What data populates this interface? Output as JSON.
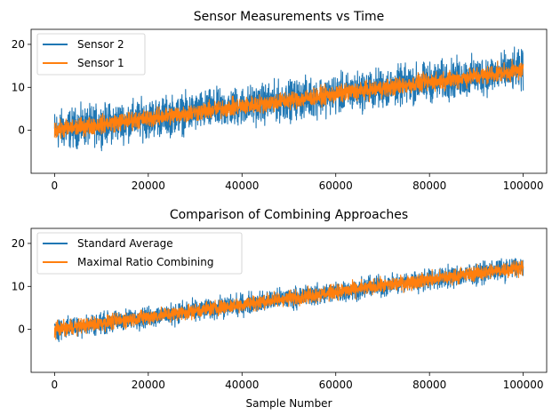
{
  "chart_data": [
    {
      "type": "line",
      "title": "Sensor Measurements vs Time",
      "xlabel": "",
      "ylabel": "",
      "xlim": [
        -5000,
        105000
      ],
      "ylim": [
        -10,
        23.5
      ],
      "xticks": [
        0,
        20000,
        40000,
        60000,
        80000,
        100000
      ],
      "yticks": [
        0,
        10,
        20
      ],
      "grid": false,
      "legend": "top-left",
      "series": [
        {
          "name": "Sensor 2",
          "color": "#1f77b4",
          "trend": [
            0,
            14
          ],
          "spread": 6.5
        },
        {
          "name": "Sensor 1",
          "color": "#ff7f0e",
          "trend": [
            0,
            14
          ],
          "spread": 3.0
        }
      ]
    },
    {
      "type": "line",
      "title": "Comparison of Combining Approaches",
      "xlabel": "Sample Number",
      "ylabel": "",
      "xlim": [
        -5000,
        105000
      ],
      "ylim": [
        -10,
        23.5
      ],
      "xticks": [
        0,
        20000,
        40000,
        60000,
        80000,
        100000
      ],
      "yticks": [
        0,
        10,
        20
      ],
      "grid": false,
      "legend": "top-left",
      "series": [
        {
          "name": "Standard Average",
          "color": "#1f77b4",
          "trend": [
            0,
            14.5
          ],
          "spread": 3.5
        },
        {
          "name": "Maximal Ratio Combining",
          "color": "#ff7f0e",
          "trend": [
            0,
            14.5
          ],
          "spread": 2.5
        }
      ]
    }
  ]
}
